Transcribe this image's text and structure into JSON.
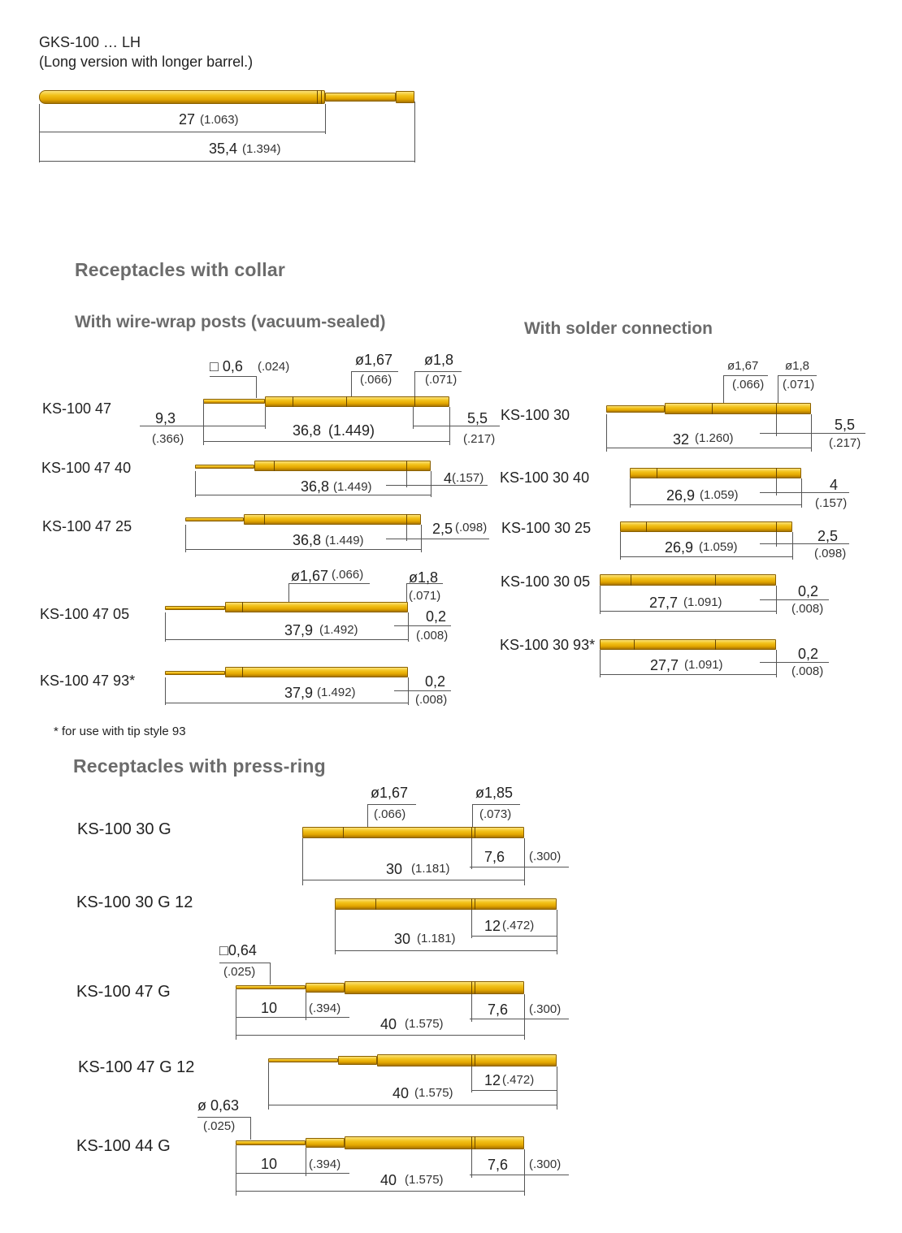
{
  "gks": {
    "title": "GKS-100 … LH",
    "subtitle": "(Long version with longer barrel.)",
    "d1": "27",
    "d1_in": "(1.063)",
    "d2": "35,4",
    "d2_in": "(1.394)"
  },
  "headings": {
    "collar": "Receptacles with collar",
    "wirewrap": "With wire-wrap posts (vacuum-sealed)",
    "solder": "With solder connection",
    "pressring": "Receptacles with press-ring"
  },
  "footnote": "* for use with tip style 93",
  "ww": [
    {
      "label": "KS-100 47",
      "t": [
        "□ 0,6",
        "(.024)",
        "ø1,67",
        "(.066)",
        "ø1,8",
        "(.071)",
        "9,3",
        "(.366)",
        "36,8",
        "(1.449)",
        "5,5",
        "(.217)"
      ]
    },
    {
      "label": "KS-100 47 40",
      "t": [
        "36,8",
        "(1.449)",
        "4",
        "(.157)"
      ]
    },
    {
      "label": "KS-100 47 25",
      "t": [
        "36,8",
        "(1.449)",
        "2,5",
        "(.098)"
      ]
    },
    {
      "label": "KS-100 47 05",
      "t": [
        "ø1,67",
        "(.066)",
        "ø1,8",
        "(.071)",
        "37,9",
        "(1.492)",
        "0,2",
        "(.008)"
      ]
    },
    {
      "label": "KS-100 47 93*",
      "t": [
        "37,9",
        "(1.492)",
        "0,2",
        "(.008)"
      ]
    }
  ],
  "sc": [
    {
      "label": "KS-100 30",
      "t": [
        "ø1,67",
        "(.066)",
        "ø1,8",
        "(.071)",
        "32",
        "(1.260)",
        "5,5",
        "(.217)"
      ]
    },
    {
      "label": "KS-100 30 40",
      "t": [
        "26,9",
        "(1.059)",
        "4",
        "(.157)"
      ]
    },
    {
      "label": "KS-100 30 25",
      "t": [
        "26,9",
        "(1.059)",
        "2,5",
        "(.098)"
      ]
    },
    {
      "label": "KS-100 30 05",
      "t": [
        "27,7",
        "(1.091)",
        "0,2",
        "(.008)"
      ]
    },
    {
      "label": "KS-100 30 93*",
      "t": [
        "27,7",
        "(1.091)",
        "0,2",
        "(.008)"
      ]
    }
  ],
  "pr": [
    {
      "label": "KS-100 30 G",
      "t": [
        "ø1,67",
        "(.066)",
        "ø1,85",
        "(.073)",
        "7,6",
        "(.300)",
        "30",
        "(1.181)"
      ]
    },
    {
      "label": "KS-100 30 G 12",
      "t": [
        "12",
        "(.472)",
        "30",
        "(1.181)"
      ]
    },
    {
      "label": "KS-100 47 G",
      "t": [
        "□0,64",
        "(.025)",
        "10",
        "(.394)",
        "7,6",
        "(.300)",
        "40",
        "(1.575)"
      ]
    },
    {
      "label": "KS-100 47 G 12",
      "t": [
        "12",
        "(.472)",
        "40",
        "(1.575)"
      ]
    },
    {
      "label": "KS-100 44 G",
      "t": [
        "ø 0,63",
        "(.025)",
        "10",
        "(.394)",
        "7,6",
        "(.300)",
        "40",
        "(1.575)"
      ]
    }
  ]
}
